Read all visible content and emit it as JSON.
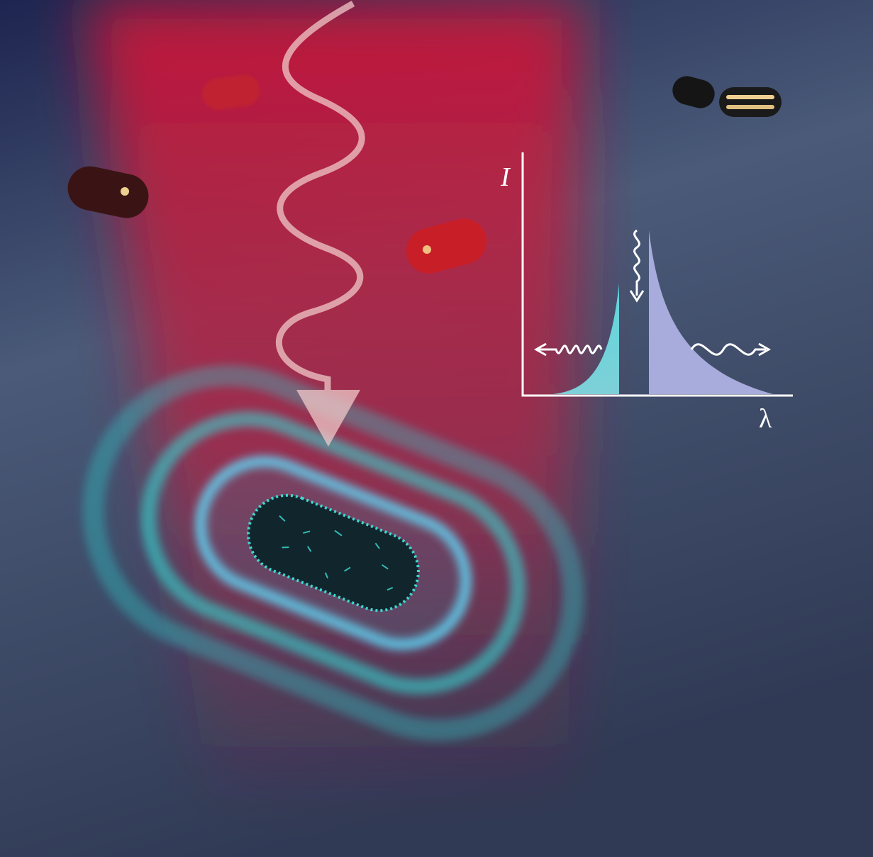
{
  "inset": {
    "y_label": "I",
    "x_label": "λ"
  }
}
